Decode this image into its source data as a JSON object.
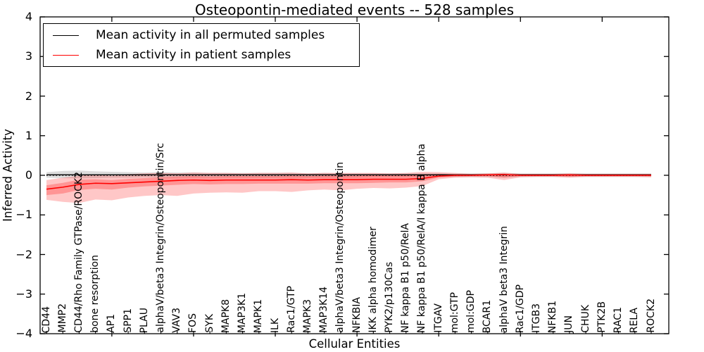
{
  "figure": {
    "title": "Osteopontin-mediated events -- 528 samples",
    "xlabel": "Cellular Entities",
    "ylabel": "Inferred Activity"
  },
  "legend": {
    "items": [
      {
        "label": "Mean activity in all permuted samples",
        "color": "#000000"
      },
      {
        "label": "Mean activity in patient samples",
        "color": "#ff0000"
      }
    ],
    "position": "upper left"
  },
  "chart_data": {
    "type": "line",
    "title": "Osteopontin-mediated events -- 528 samples",
    "xlabel": "Cellular Entities",
    "ylabel": "Inferred Activity",
    "ylim": [
      -4,
      4
    ],
    "yticks": [
      -4,
      -3,
      -2,
      -1,
      0,
      1,
      2,
      3,
      4
    ],
    "grid": false,
    "legend_position": "upper left",
    "categories": [
      "CD44",
      "MMP2",
      "CD44/Rho Family GTPase/ROCK2",
      "bone resorption",
      "AP1",
      "SPP1",
      "PLAU",
      "alphaV/beta3 Integrin/Osteopontin/Src",
      "VAV3",
      "FOS",
      "SYK",
      "MAPK8",
      "MAP3K1",
      "MAPK1",
      "ILK",
      "Rac1/GTP",
      "MAPK3",
      "MAP3K14",
      "alphaV/beta3 Integrin/Osteopontin",
      "NFKBIA",
      "IKK alpha homodimer",
      "PYK2/p130Cas",
      "NF kappa B1 p50/RelA",
      "NF kappa B1 p50/RelA/I kappa B alpha",
      "ITGAV",
      "mol:GTP",
      "mol:GDP",
      "BCAR1",
      "alphaV beta3 Integrin",
      "Rac1/GDP",
      "ITGB3",
      "NFKB1",
      "JUN",
      "CHUK",
      "PTK2B",
      "RAC1",
      "RELA",
      "ROCK2"
    ],
    "series": [
      {
        "name": "Mean activity in all permuted samples",
        "color": "#000000",
        "values": [
          0.012,
          0.012,
          0.012,
          0.012,
          0.012,
          0.012,
          0.012,
          0.012,
          0.012,
          0.012,
          0.012,
          0.012,
          0.012,
          0.012,
          0.012,
          0.012,
          0.012,
          0.012,
          0.012,
          0.012,
          0.012,
          0.012,
          0.012,
          0.012,
          0.012,
          0.012,
          0.012,
          0.012,
          0.012,
          0.012,
          0.012,
          0.012,
          0.012,
          0.012,
          0.012,
          0.012,
          0.012,
          0.012
        ]
      },
      {
        "name": "Mean activity in patient samples",
        "color": "#ff0000",
        "values": [
          -0.35,
          -0.3,
          -0.23,
          -0.2,
          -0.21,
          -0.19,
          -0.17,
          -0.15,
          -0.13,
          -0.12,
          -0.13,
          -0.12,
          -0.12,
          -0.12,
          -0.12,
          -0.11,
          -0.12,
          -0.11,
          -0.11,
          -0.11,
          -0.1,
          -0.1,
          -0.1,
          -0.08,
          -0.02,
          0,
          0,
          0.01,
          0.02,
          0,
          0,
          0,
          0.01,
          0,
          0,
          0,
          0,
          0
        ]
      }
    ],
    "bands": [
      {
        "name": "permuted-range",
        "color": "rgba(0,0,0,0.14)",
        "upper": [
          0.08,
          0.11,
          0.12,
          0.1,
          0.09,
          0.08,
          0.07,
          0.08,
          0.07,
          0.07,
          0.06,
          0.06,
          0.06,
          0.06,
          0.06,
          0.06,
          0.05,
          0.06,
          0.05,
          0.05,
          0.05,
          0.05,
          0.05,
          0.05,
          0.05,
          0.04,
          0.04,
          0.05,
          0.06,
          0.04,
          0.04,
          0.04,
          0.05,
          0.04,
          0.04,
          0.04,
          0.04,
          0.04
        ],
        "lower": [
          -0.06,
          -0.07,
          -0.08,
          -0.07,
          -0.06,
          -0.06,
          -0.05,
          -0.06,
          -0.05,
          -0.05,
          -0.05,
          -0.05,
          -0.05,
          -0.05,
          -0.05,
          -0.05,
          -0.05,
          -0.05,
          -0.05,
          -0.05,
          -0.04,
          -0.04,
          -0.04,
          -0.04,
          -0.04,
          -0.04,
          -0.04,
          -0.04,
          -0.05,
          -0.04,
          -0.04,
          -0.04,
          -0.04,
          -0.04,
          -0.04,
          -0.04,
          -0.04,
          -0.04
        ]
      },
      {
        "name": "patient-outer",
        "color": "rgba(255,0,0,0.22)",
        "upper": [
          -0.12,
          -0.06,
          -0.01,
          0.02,
          -0.01,
          0.03,
          0.05,
          0.06,
          0.05,
          0.07,
          0.06,
          0.06,
          0.05,
          0.06,
          0.06,
          0.07,
          0.05,
          0.06,
          0.06,
          0.06,
          0.06,
          0.05,
          0.06,
          0.09,
          0.08,
          0.06,
          0.04,
          0.05,
          0.07,
          0.04,
          0.04,
          0.04,
          0.05,
          0.04,
          0.04,
          0.04,
          0.04,
          0.04
        ],
        "lower": [
          -0.62,
          -0.67,
          -0.7,
          -0.61,
          -0.63,
          -0.56,
          -0.52,
          -0.5,
          -0.52,
          -0.46,
          -0.44,
          -0.43,
          -0.44,
          -0.4,
          -0.4,
          -0.42,
          -0.38,
          -0.36,
          -0.38,
          -0.34,
          -0.32,
          -0.33,
          -0.31,
          -0.27,
          -0.1,
          -0.06,
          -0.05,
          -0.06,
          -0.12,
          -0.05,
          -0.04,
          -0.04,
          -0.06,
          -0.04,
          -0.04,
          -0.04,
          -0.04,
          -0.05
        ]
      },
      {
        "name": "patient-inner",
        "color": "rgba(255,0,0,0.25)",
        "upper": [
          -0.25,
          -0.19,
          -0.11,
          -0.1,
          -0.12,
          -0.09,
          -0.07,
          -0.05,
          -0.03,
          -0.02,
          -0.03,
          -0.02,
          -0.02,
          -0.02,
          -0.02,
          -0.01,
          -0.02,
          -0.01,
          -0.01,
          -0.01,
          0.0,
          0.0,
          0.0,
          0.02,
          0.03,
          0.02,
          0.02,
          0.03,
          0.03,
          0.02,
          0.02,
          0.02,
          0.02,
          0.02,
          0.02,
          0.02,
          0.02,
          0.02
        ],
        "lower": [
          -0.5,
          -0.46,
          -0.37,
          -0.34,
          -0.36,
          -0.31,
          -0.28,
          -0.26,
          -0.24,
          -0.22,
          -0.23,
          -0.22,
          -0.22,
          -0.21,
          -0.21,
          -0.21,
          -0.21,
          -0.2,
          -0.2,
          -0.2,
          -0.19,
          -0.18,
          -0.18,
          -0.15,
          -0.06,
          -0.03,
          -0.02,
          -0.02,
          -0.06,
          -0.02,
          -0.02,
          -0.02,
          -0.03,
          -0.02,
          -0.02,
          -0.02,
          -0.02,
          -0.02
        ]
      }
    ],
    "zero_line": {
      "style": "dotted",
      "color": "#000000",
      "y": 0
    }
  }
}
